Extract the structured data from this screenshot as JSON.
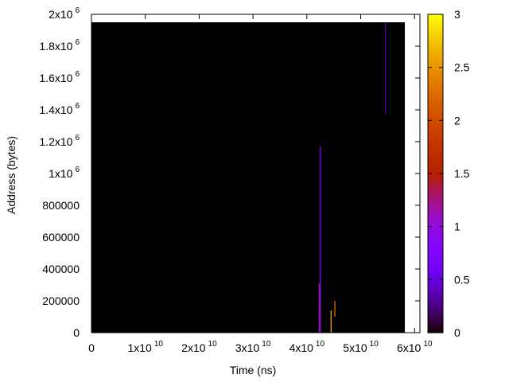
{
  "chart_data": {
    "type": "heatmap",
    "xlabel": "Time (ns)",
    "ylabel": "Address (bytes)",
    "xlim": [
      0,
      61000000000
    ],
    "ylim": [
      0,
      2000000
    ],
    "xticks": [
      0,
      {
        "value": 10000000000,
        "label": "1x10",
        "exponent": "10"
      },
      {
        "value": 20000000000,
        "label": "2x10",
        "exponent": "10"
      },
      {
        "value": 30000000000,
        "label": "3x10",
        "exponent": "10"
      },
      {
        "value": 40000000000,
        "label": "4x10",
        "exponent": "10"
      },
      {
        "value": 50000000000,
        "label": "5x10",
        "exponent": "10"
      },
      {
        "value": 60000000000,
        "label": "6x10",
        "exponent": "10"
      }
    ],
    "yticks": [
      0,
      200000,
      400000,
      600000,
      800000,
      {
        "value": 1000000,
        "label": "1x10",
        "exponent": "6"
      },
      {
        "value": 1200000,
        "label": "1.2x10",
        "exponent": "6"
      },
      {
        "value": 1400000,
        "label": "1.4x10",
        "exponent": "6"
      },
      {
        "value": 1600000,
        "label": "1.6x10",
        "exponent": "6"
      },
      {
        "value": 1800000,
        "label": "1.8x10",
        "exponent": "6"
      },
      {
        "value": 2000000,
        "label": "2x10",
        "exponent": "6"
      }
    ],
    "cblim": [
      0,
      3
    ],
    "cbticks": [
      0,
      0.5,
      1,
      1.5,
      2,
      2.5,
      3
    ],
    "palette": "gnuplot",
    "cells": [
      {
        "x": [
          0,
          58200000000
        ],
        "y": [
          0,
          1950000
        ],
        "value": 0
      },
      {
        "x": [
          42400000000,
          42600000000
        ],
        "y": [
          0,
          1170000
        ],
        "value": 0.7
      },
      {
        "x": [
          42200000000,
          42500000000
        ],
        "y": [
          0,
          310000
        ],
        "value": 1.1
      },
      {
        "x": [
          44400000000,
          44600000000
        ],
        "y": [
          0,
          140000
        ],
        "value": 2.5
      },
      {
        "x": [
          45100000000,
          45300000000
        ],
        "y": [
          100000,
          200000
        ],
        "value": 2.2
      },
      {
        "x": [
          54500000000,
          54700000000
        ],
        "y": [
          1370000,
          1950000
        ],
        "value": 0.3
      }
    ]
  }
}
